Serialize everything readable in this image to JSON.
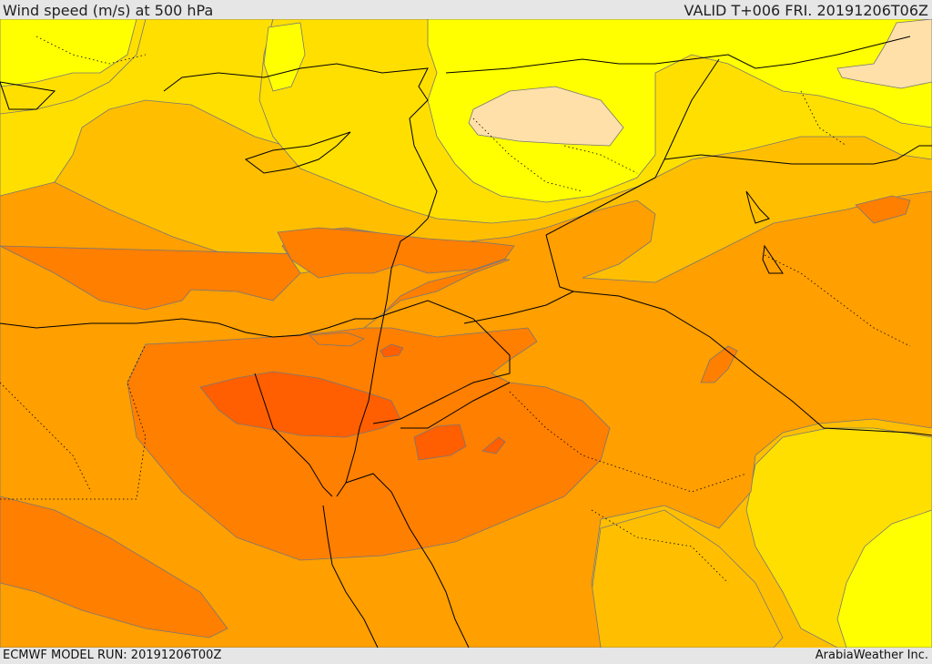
{
  "header": {
    "title": "Wind speed (m/s) at 500 hPa",
    "valid": "VALID T+006 FRI. 20191206T06Z"
  },
  "footer": {
    "model_run": "ECMWF MODEL RUN: 20191206T00Z",
    "credit": "ArabiaWeather Inc."
  },
  "map": {
    "field": "wind speed 500 hPa",
    "level_colors": [
      "#ffe0a8",
      "#ffff00",
      "#ffdf00",
      "#ffbf00",
      "#ff9f00",
      "#ff7f00",
      "#ff5f00"
    ],
    "border_color": "#000000",
    "contour_color": "#777777"
  }
}
